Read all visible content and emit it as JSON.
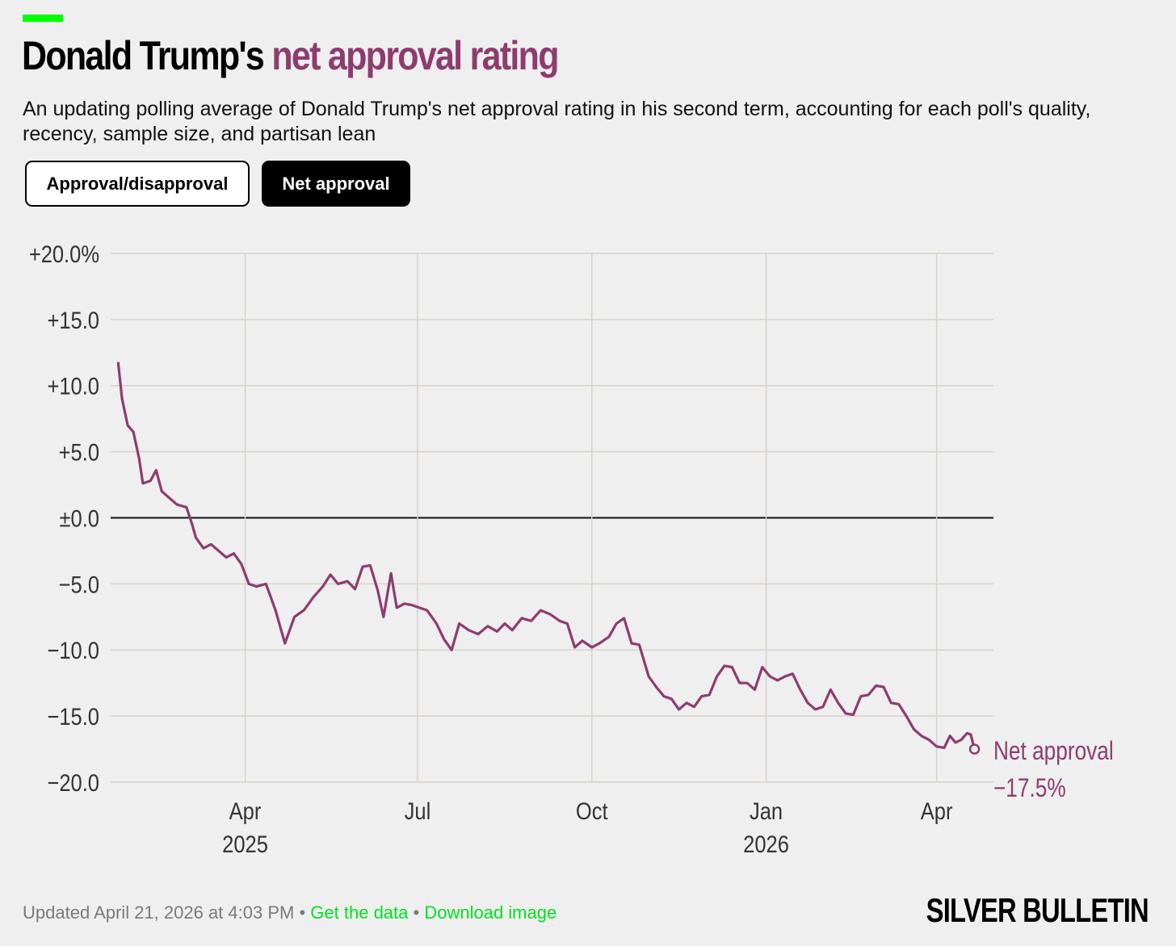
{
  "header": {
    "title_main": "Donald Trump's",
    "title_highlight": "net approval rating",
    "subtitle": "An updating polling average of Donald Trump's net approval rating in his second term, accounting for each poll's quality, recency, sample size, and partisan lean"
  },
  "toggle": {
    "approval_label": "Approval/disapproval",
    "net_label": "Net approval",
    "selected": "Net approval"
  },
  "footer": {
    "updated": "Updated April 21, 2026 at 4:03 PM",
    "separator": "•",
    "get_data": "Get the data",
    "download": "Download image"
  },
  "brand": "SILVER BULLETIN",
  "colors": {
    "accent": "#00ff00",
    "series": "#8e3c6e",
    "link": "#00e020"
  },
  "chart_data": {
    "type": "line",
    "title": "Donald Trump's net approval rating",
    "x_type": "date",
    "xlim": [
      "2025-01-20",
      "2026-05-01"
    ],
    "ylim": [
      -20,
      20
    ],
    "y_ticks": [
      {
        "value": 20,
        "label": "+20.0%"
      },
      {
        "value": 15,
        "label": "+15.0"
      },
      {
        "value": 10,
        "label": "+10.0"
      },
      {
        "value": 5,
        "label": "+5.0"
      },
      {
        "value": 0,
        "label": "±0.0"
      },
      {
        "value": -5,
        "label": "−5.0"
      },
      {
        "value": -10,
        "label": "−10.0"
      },
      {
        "value": -15,
        "label": "−15.0"
      },
      {
        "value": -20,
        "label": "−20.0"
      }
    ],
    "x_ticks": [
      {
        "date": "2025-04-01",
        "label": "Apr",
        "sublabel": "2025"
      },
      {
        "date": "2025-07-01",
        "label": "Jul",
        "sublabel": ""
      },
      {
        "date": "2025-10-01",
        "label": "Oct",
        "sublabel": ""
      },
      {
        "date": "2026-01-01",
        "label": "Jan",
        "sublabel": "2026"
      },
      {
        "date": "2026-04-01",
        "label": "Apr",
        "sublabel": ""
      }
    ],
    "grid": true,
    "series": [
      {
        "name": "Net approval",
        "end_label": "−17.5%",
        "color": "#8e3c6e",
        "points": [
          [
            "2025-01-24",
            11.7
          ],
          [
            "2025-01-26",
            9.0
          ],
          [
            "2025-01-29",
            7.0
          ],
          [
            "2025-02-01",
            6.5
          ],
          [
            "2025-02-04",
            4.5
          ],
          [
            "2025-02-06",
            2.6
          ],
          [
            "2025-02-10",
            2.8
          ],
          [
            "2025-02-13",
            3.6
          ],
          [
            "2025-02-16",
            2.0
          ],
          [
            "2025-02-20",
            1.5
          ],
          [
            "2025-02-24",
            1.0
          ],
          [
            "2025-03-01",
            0.8
          ],
          [
            "2025-03-04",
            -0.5
          ],
          [
            "2025-03-06",
            -1.5
          ],
          [
            "2025-03-10",
            -2.3
          ],
          [
            "2025-03-14",
            -2.0
          ],
          [
            "2025-03-18",
            -2.5
          ],
          [
            "2025-03-22",
            -3.0
          ],
          [
            "2025-03-26",
            -2.7
          ],
          [
            "2025-03-30",
            -3.5
          ],
          [
            "2025-04-03",
            -5.0
          ],
          [
            "2025-04-07",
            -5.2
          ],
          [
            "2025-04-12",
            -5.0
          ],
          [
            "2025-04-17",
            -7.0
          ],
          [
            "2025-04-22",
            -9.5
          ],
          [
            "2025-04-27",
            -7.5
          ],
          [
            "2025-05-02",
            -7.0
          ],
          [
            "2025-05-07",
            -6.0
          ],
          [
            "2025-05-12",
            -5.2
          ],
          [
            "2025-05-16",
            -4.3
          ],
          [
            "2025-05-20",
            -5.0
          ],
          [
            "2025-05-25",
            -4.8
          ],
          [
            "2025-05-29",
            -5.4
          ],
          [
            "2025-06-02",
            -3.7
          ],
          [
            "2025-06-06",
            -3.6
          ],
          [
            "2025-06-10",
            -5.5
          ],
          [
            "2025-06-13",
            -7.5
          ],
          [
            "2025-06-17",
            -4.2
          ],
          [
            "2025-06-20",
            -6.8
          ],
          [
            "2025-06-24",
            -6.5
          ],
          [
            "2025-06-28",
            -6.6
          ],
          [
            "2025-07-02",
            -6.8
          ],
          [
            "2025-07-06",
            -7.0
          ],
          [
            "2025-07-11",
            -8.0
          ],
          [
            "2025-07-15",
            -9.2
          ],
          [
            "2025-07-19",
            -10.0
          ],
          [
            "2025-07-23",
            -8.0
          ],
          [
            "2025-07-28",
            -8.5
          ],
          [
            "2025-08-02",
            -8.8
          ],
          [
            "2025-08-07",
            -8.2
          ],
          [
            "2025-08-12",
            -8.6
          ],
          [
            "2025-08-16",
            -8.0
          ],
          [
            "2025-08-20",
            -8.5
          ],
          [
            "2025-08-25",
            -7.6
          ],
          [
            "2025-08-30",
            -7.8
          ],
          [
            "2025-09-04",
            -7.0
          ],
          [
            "2025-09-09",
            -7.3
          ],
          [
            "2025-09-14",
            -7.8
          ],
          [
            "2025-09-18",
            -8.0
          ],
          [
            "2025-09-22",
            -9.8
          ],
          [
            "2025-09-26",
            -9.3
          ],
          [
            "2025-10-01",
            -9.8
          ],
          [
            "2025-10-05",
            -9.5
          ],
          [
            "2025-10-10",
            -9.0
          ],
          [
            "2025-10-14",
            -8.0
          ],
          [
            "2025-10-18",
            -7.6
          ],
          [
            "2025-10-22",
            -9.5
          ],
          [
            "2025-10-26",
            -9.6
          ],
          [
            "2025-10-31",
            -12.0
          ],
          [
            "2025-11-04",
            -12.8
          ],
          [
            "2025-11-08",
            -13.5
          ],
          [
            "2025-11-12",
            -13.7
          ],
          [
            "2025-11-16",
            -14.5
          ],
          [
            "2025-11-20",
            -14.0
          ],
          [
            "2025-11-24",
            -14.3
          ],
          [
            "2025-11-28",
            -13.5
          ],
          [
            "2025-12-02",
            -13.4
          ],
          [
            "2025-12-06",
            -12.0
          ],
          [
            "2025-12-10",
            -11.2
          ],
          [
            "2025-12-14",
            -11.3
          ],
          [
            "2025-12-18",
            -12.5
          ],
          [
            "2025-12-22",
            -12.5
          ],
          [
            "2025-12-26",
            -13.0
          ],
          [
            "2025-12-30",
            -11.3
          ],
          [
            "2026-01-03",
            -12.0
          ],
          [
            "2026-01-07",
            -12.3
          ],
          [
            "2026-01-11",
            -12.0
          ],
          [
            "2026-01-15",
            -11.8
          ],
          [
            "2026-01-19",
            -13.0
          ],
          [
            "2026-01-23",
            -14.0
          ],
          [
            "2026-01-27",
            -14.5
          ],
          [
            "2026-01-31",
            -14.3
          ],
          [
            "2026-02-04",
            -13.0
          ],
          [
            "2026-02-08",
            -14.0
          ],
          [
            "2026-02-12",
            -14.8
          ],
          [
            "2026-02-16",
            -14.9
          ],
          [
            "2026-02-20",
            -13.5
          ],
          [
            "2026-02-24",
            -13.4
          ],
          [
            "2026-02-28",
            -12.7
          ],
          [
            "2026-03-04",
            -12.8
          ],
          [
            "2026-03-08",
            -14.0
          ],
          [
            "2026-03-12",
            -14.1
          ],
          [
            "2026-03-16",
            -15.0
          ],
          [
            "2026-03-20",
            -16.0
          ],
          [
            "2026-03-24",
            -16.5
          ],
          [
            "2026-03-28",
            -16.8
          ],
          [
            "2026-04-01",
            -17.3
          ],
          [
            "2026-04-05",
            -17.4
          ],
          [
            "2026-04-08",
            -16.5
          ],
          [
            "2026-04-11",
            -17.0
          ],
          [
            "2026-04-14",
            -16.8
          ],
          [
            "2026-04-17",
            -16.3
          ],
          [
            "2026-04-19",
            -16.4
          ],
          [
            "2026-04-21",
            -17.5
          ]
        ]
      }
    ]
  }
}
